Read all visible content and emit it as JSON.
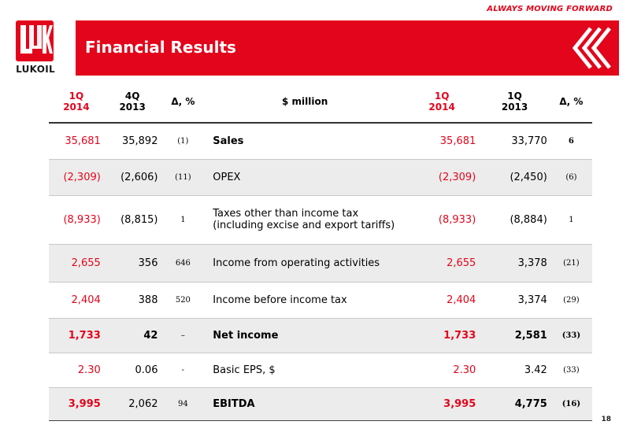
{
  "header": {
    "tagline": "ALWAYS MOVING FORWARD",
    "title": "Financial Results",
    "logo_text": "LUKOIL",
    "accent_color": "#e3051b"
  },
  "table": {
    "columns": {
      "c1": [
        "1Q",
        "2014"
      ],
      "c2": [
        "4Q",
        "2013"
      ],
      "c3": "Δ, %",
      "c4": "$ million",
      "c5": [
        "1Q",
        "2014"
      ],
      "c6": [
        "1Q",
        "2013"
      ],
      "c7": "Δ, %"
    },
    "rows": [
      {
        "q1_2014": "35,681",
        "q4_2013": "35,892",
        "delta_q": "(1)",
        "label": "Sales",
        "y1q_2014": "35,681",
        "y1q_2013": "33,770",
        "delta_y": "6"
      },
      {
        "q1_2014": "(2,309)",
        "q4_2013": "(2,606)",
        "delta_q": "(11)",
        "label": "OPEX",
        "y1q_2014": "(2,309)",
        "y1q_2013": "(2,450)",
        "delta_y": "(6)"
      },
      {
        "q1_2014": "(8,933)",
        "q4_2013": "(8,815)",
        "delta_q": "1",
        "label": "Taxes other than income tax",
        "label2": "(including excise and export tariffs)",
        "y1q_2014": "(8,933)",
        "y1q_2013": "(8,884)",
        "delta_y": "1"
      },
      {
        "q1_2014": "2,655",
        "q4_2013": "356",
        "delta_q": "646",
        "label": "Income from operating activities",
        "y1q_2014": "2,655",
        "y1q_2013": "3,378",
        "delta_y": "(21)"
      },
      {
        "q1_2014": "2,404",
        "q4_2013": "388",
        "delta_q": "520",
        "label": "Income before income tax",
        "y1q_2014": "2,404",
        "y1q_2013": "3,374",
        "delta_y": "(29)"
      },
      {
        "q1_2014": "1,733",
        "q4_2013": "42",
        "delta_q": "–",
        "label": "Net income",
        "y1q_2014": "1,733",
        "y1q_2013": "2,581",
        "delta_y": "(33)"
      },
      {
        "q1_2014": "2.30",
        "q4_2013": "0.06",
        "delta_q": "-",
        "label": "Basic EPS, $",
        "y1q_2014": "2.30",
        "y1q_2013": "3.42",
        "delta_y": "(33)"
      },
      {
        "q1_2014": "3,995",
        "q4_2013": "2,062",
        "delta_q": "94",
        "label": "EBITDA",
        "y1q_2014": "3,995",
        "y1q_2013": "4,775",
        "delta_y": "(16)"
      }
    ]
  },
  "page_number": "18"
}
